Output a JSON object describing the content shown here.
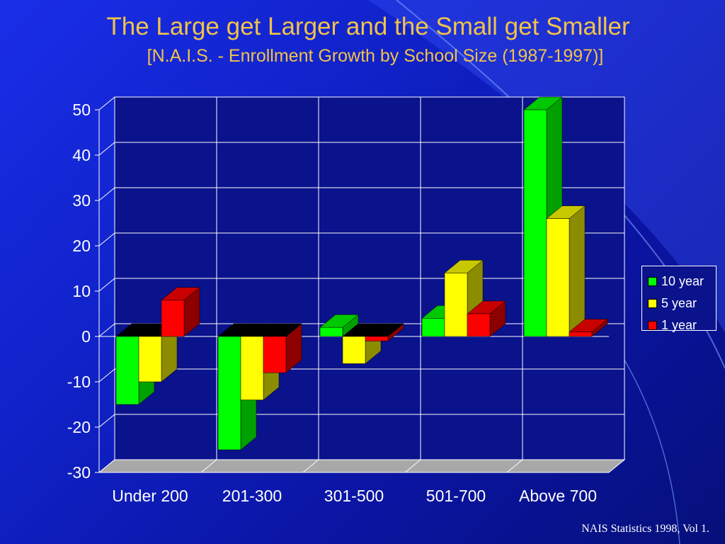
{
  "slide": {
    "title": "The Large get Larger and the Small get Smaller",
    "subtitle": "[N.A.I.S. - Enrollment Growth by School Size (1987-1997)]",
    "source": "NAIS Statistics 1998, Vol 1."
  },
  "chart_data": {
    "type": "bar",
    "categories": [
      "Under 200",
      "201-300",
      "301-500",
      "501-700",
      "Above 700"
    ],
    "series": [
      {
        "name": "10 year",
        "values": [
          -15,
          -25,
          2,
          4,
          50
        ],
        "color": "#00ff00",
        "side_color": "#00a000",
        "top_color": "#00c800"
      },
      {
        "name": "5 year",
        "values": [
          -10,
          -14,
          -6,
          14,
          26
        ],
        "color": "#ffff00",
        "side_color": "#8c8c00",
        "top_color": "#c8c800"
      },
      {
        "name": "1 year",
        "values": [
          8,
          -8,
          -1,
          5,
          1
        ],
        "color": "#ff0000",
        "side_color": "#8c0000",
        "top_color": "#c80000"
      }
    ],
    "ylim": [
      -30,
      50
    ],
    "yticks": [
      50,
      40,
      30,
      20,
      10,
      0,
      -10,
      -20,
      -30
    ],
    "grid": true,
    "legend": "right",
    "plot_background": "#0a128c",
    "text_color": "#ffffff"
  }
}
